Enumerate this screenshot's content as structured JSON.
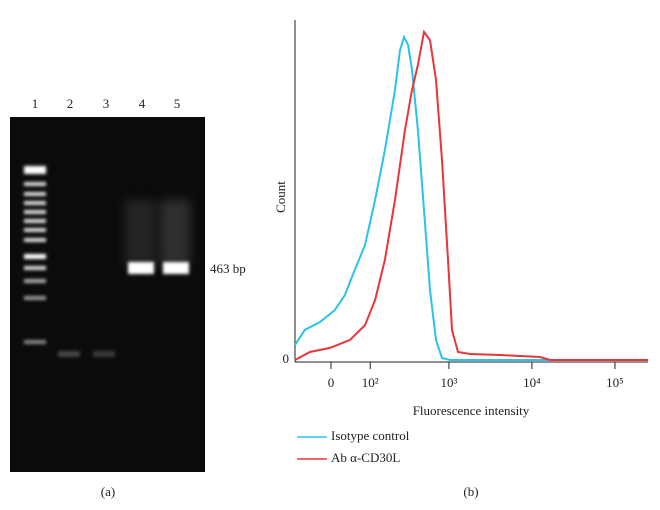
{
  "gel": {
    "lane_labels": [
      "1",
      "2",
      "3",
      "4",
      "5"
    ],
    "band_label": "463 bp",
    "panel_label": "(a)"
  },
  "chart_data": {
    "type": "line",
    "panel_label": "(b)",
    "x_label": "Fluorescence intensity",
    "y_label": "Count",
    "xscale": "biexponential",
    "xlim": [
      -89,
      250000
    ],
    "ylim": [
      0,
      100
    ],
    "xticks": [
      0,
      {
        "value": 100,
        "label": "10²"
      },
      {
        "value": 1000,
        "label": "10³"
      },
      {
        "value": 10000,
        "label": "10⁴"
      },
      {
        "value": 100000,
        "label": "10⁵"
      }
    ],
    "yticks": [
      0
    ],
    "legend": "bottom-left",
    "series": [
      {
        "name": "Isotype control",
        "color": "#29c3e8",
        "x": [
          -89,
          -60,
          -24,
          8,
          30,
          54,
          83,
          118,
          161,
          218,
          252,
          283,
          318,
          356,
          420,
          498,
          590,
          698,
          825,
          1031,
          250000
        ],
        "values": [
          4.5,
          9,
          11.3,
          14.9,
          19.4,
          26.9,
          34.3,
          47.8,
          62.7,
          80.6,
          92.5,
          96.4,
          94,
          86.6,
          68.7,
          44.8,
          20.9,
          6,
          0.6,
          0,
          0
        ]
      },
      {
        "name": "Ab α-CD30L",
        "color": "#e8343a",
        "x": [
          -89,
          -47,
          -2,
          42,
          83,
          118,
          161,
          218,
          291,
          356,
          420,
          498,
          590,
          698,
          825,
          975,
          1090,
          1287,
          1798,
          4134,
          7190,
          12517,
          16545,
          250000
        ],
        "values": [
          0,
          2.4,
          3.6,
          6,
          10.4,
          17.9,
          29.9,
          47.8,
          68.7,
          80.6,
          88.1,
          97.9,
          95.5,
          83.6,
          59.7,
          29.9,
          9,
          2.4,
          1.8,
          1.5,
          1.2,
          0.9,
          0,
          0
        ]
      }
    ]
  }
}
